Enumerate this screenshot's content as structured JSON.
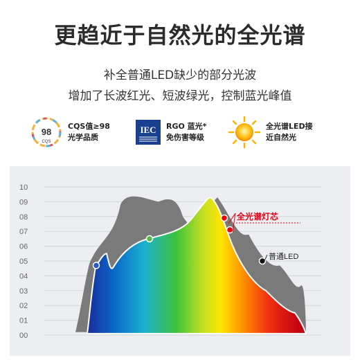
{
  "header": {
    "title": "更趋近于自然光的全光谱",
    "subtitle_line1": "补全普通LED缺少的部分光波",
    "subtitle_line2": "增加了长波红光、短波绿光，控制蓝光峰值"
  },
  "features": [
    {
      "icon": "cqs-98-badge-icon",
      "badge_number": "98",
      "badge_caption": "CQS",
      "line1": "CQS值≥98",
      "line2": "光学品质"
    },
    {
      "icon": "iec-logo-icon",
      "logo_text": "IEC",
      "line1": "RGO 蓝光*",
      "line2": "免伤害等级"
    },
    {
      "icon": "sun-icon",
      "line1": "全光谱LED接",
      "line2": "近自然光"
    }
  ],
  "chart_data": {
    "type": "area",
    "y_tick_labels": [
      "00",
      "01",
      "02",
      "03",
      "04",
      "05",
      "06",
      "07",
      "08",
      "09",
      "10"
    ],
    "ylim": [
      0,
      10
    ],
    "x": [
      0,
      10,
      20,
      30,
      40,
      50,
      60,
      70,
      80,
      90,
      100
    ],
    "series": [
      {
        "name": "全光谱灯芯",
        "values": [
          1.5,
          5.5,
          4.6,
          5.5,
          6.5,
          7.0,
          8.5,
          9.3,
          6.5,
          3.0,
          1.5
        ],
        "color": "#e60012"
      },
      {
        "name": "普通LED",
        "values": [
          1.5,
          4.8,
          9.2,
          9.3,
          6.5,
          7.0,
          8.5,
          9.2,
          6.8,
          4.7,
          3.8
        ],
        "color": "#7a7a7a"
      }
    ],
    "annotations": [
      "全光谱灯芯",
      "普通LED"
    ],
    "grid": true
  },
  "colors": {
    "red_label": "#e60012",
    "grey_curve": "#7a7a7a",
    "panel_bg": "#eceef1"
  }
}
